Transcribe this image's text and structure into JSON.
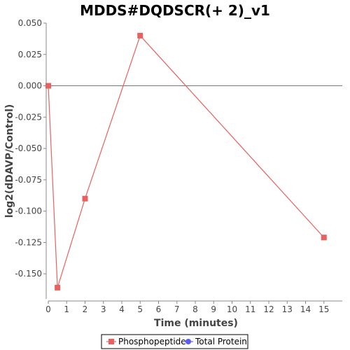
{
  "chart_data": {
    "type": "line",
    "title": "MDDS#DQDSCR(+ 2)_v1",
    "xlabel": "Time (minutes)",
    "ylabel": "log2(dDAVP/Control)",
    "xlim": [
      0,
      16
    ],
    "ylim": [
      -0.17,
      0.05
    ],
    "xticks": [
      0,
      1,
      2,
      3,
      4,
      5,
      6,
      7,
      8,
      9,
      10,
      11,
      12,
      13,
      14,
      15
    ],
    "xtick_labels": [
      "0",
      "1",
      "2",
      "3",
      "4",
      "5",
      "6",
      "7",
      "8",
      "9",
      "10",
      "11",
      "12",
      "13",
      "14",
      "15"
    ],
    "yticks": [
      0.05,
      0.025,
      0.0,
      -0.025,
      -0.05,
      -0.075,
      -0.1,
      -0.125,
      -0.15
    ],
    "ytick_labels": [
      "0.050",
      "0.025",
      "0.000",
      "-0.025",
      "-0.050",
      "-0.075",
      "-0.100",
      "-0.125",
      "-0.150"
    ],
    "zero_line": true,
    "grid": false,
    "legend_position": "bottom-center",
    "series": [
      {
        "name": "Phosphopeptide",
        "color": "#e8615f",
        "marker": "square",
        "x": [
          0,
          0.5,
          2,
          5,
          15
        ],
        "y": [
          0.0,
          -0.161,
          -0.09,
          0.04,
          -0.121
        ]
      },
      {
        "name": "Total Protein",
        "color": "#5b5bf0",
        "marker": "circle",
        "x": [],
        "y": []
      }
    ]
  }
}
